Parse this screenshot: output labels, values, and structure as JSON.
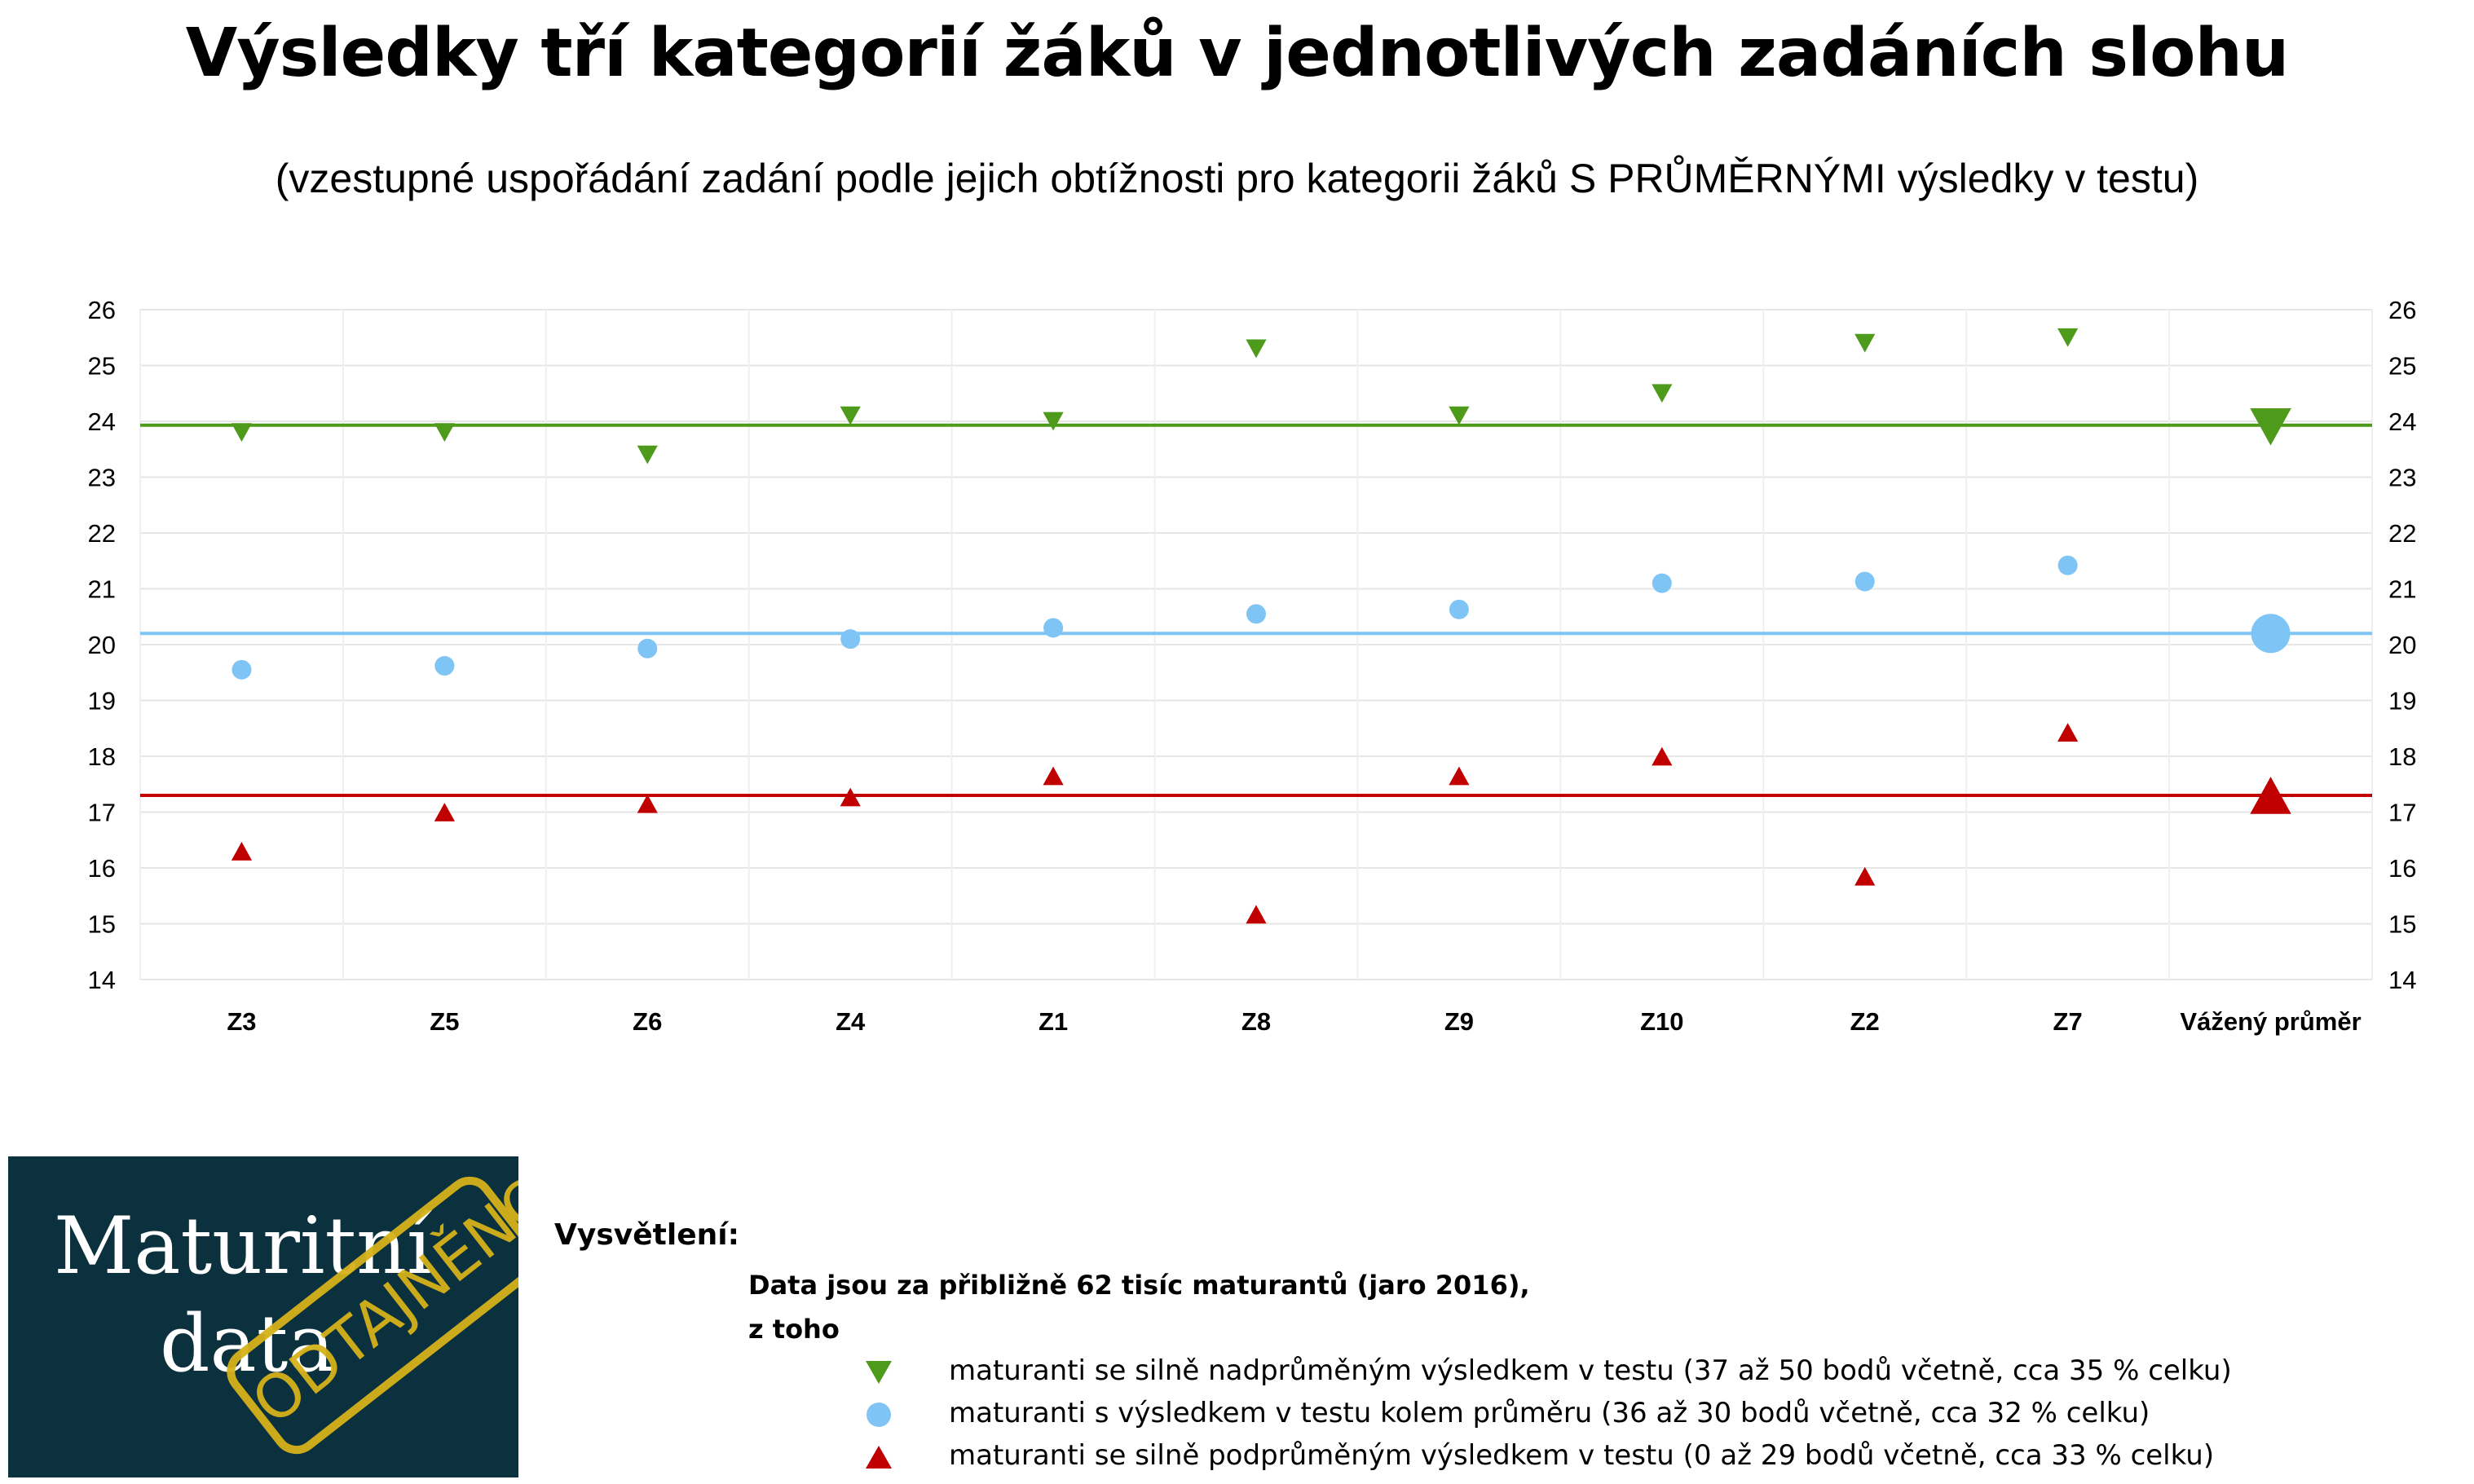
{
  "title": "Výsledky tří kategorií žáků v jednotlivých zadáních slohu",
  "subtitle": "(vzestupné uspořádání zadání podle jejich obtížnosti pro kategorii žáků S PRŮMĚRNÝMI výsledky v testu)",
  "colors": {
    "green": "#4e9a1b",
    "blue": "#7ec4f5",
    "red": "#c00000"
  },
  "chart_data": {
    "type": "scatter",
    "categories": [
      "Z3",
      "Z5",
      "Z6",
      "Z4",
      "Z1",
      "Z8",
      "Z9",
      "Z10",
      "Z2",
      "Z7",
      "Vážený průměr"
    ],
    "ylim": [
      14,
      26
    ],
    "yticks": [
      14,
      15,
      16,
      17,
      18,
      19,
      20,
      21,
      22,
      23,
      24,
      25,
      26
    ],
    "secondary_axis": true,
    "grid": true,
    "series": [
      {
        "marker": "triangle-down",
        "color": "#4e9a1b",
        "values": [
          23.8,
          23.8,
          23.4,
          24.1,
          24.0,
          25.3,
          24.1,
          24.5,
          25.4,
          25.5,
          23.9
        ],
        "reference_line": 23.93
      },
      {
        "marker": "circle",
        "color": "#7ec4f5",
        "values": [
          19.55,
          19.62,
          19.93,
          20.1,
          20.3,
          20.55,
          20.63,
          21.1,
          21.13,
          21.42,
          20.2
        ],
        "reference_line": 20.2
      },
      {
        "marker": "triangle-up",
        "color": "#c00000",
        "values": [
          16.3,
          17.0,
          17.15,
          17.27,
          17.65,
          15.17,
          17.65,
          18.0,
          15.85,
          18.43,
          17.3
        ],
        "reference_line": 17.3
      }
    ]
  },
  "logo": {
    "line1": "Maturitní",
    "line2": "data",
    "stamp": "ODTAJNĚNO"
  },
  "legend": {
    "heading": "Vysvětlení:",
    "note_line1": "Data jsou za přibližně 62 tisíc maturantů (jaro 2016),",
    "note_line2": "z toho",
    "items": [
      {
        "marker": "triangle-down",
        "color": "#4e9a1b",
        "label": "maturanti se silně nadprůměným výsledkem v testu (37 až 50 bodů včetně, cca 35 % celku)"
      },
      {
        "marker": "circle",
        "color": "#7ec4f5",
        "label": "maturanti s výsledkem v testu kolem průměru (36 až 30 bodů včetně, cca 32 % celku)"
      },
      {
        "marker": "triangle-up",
        "color": "#c00000",
        "label": "maturanti se silně podprůměným výsledkem v testu (0 až 29 bodů včetně, cca 33 % celku)"
      }
    ]
  }
}
